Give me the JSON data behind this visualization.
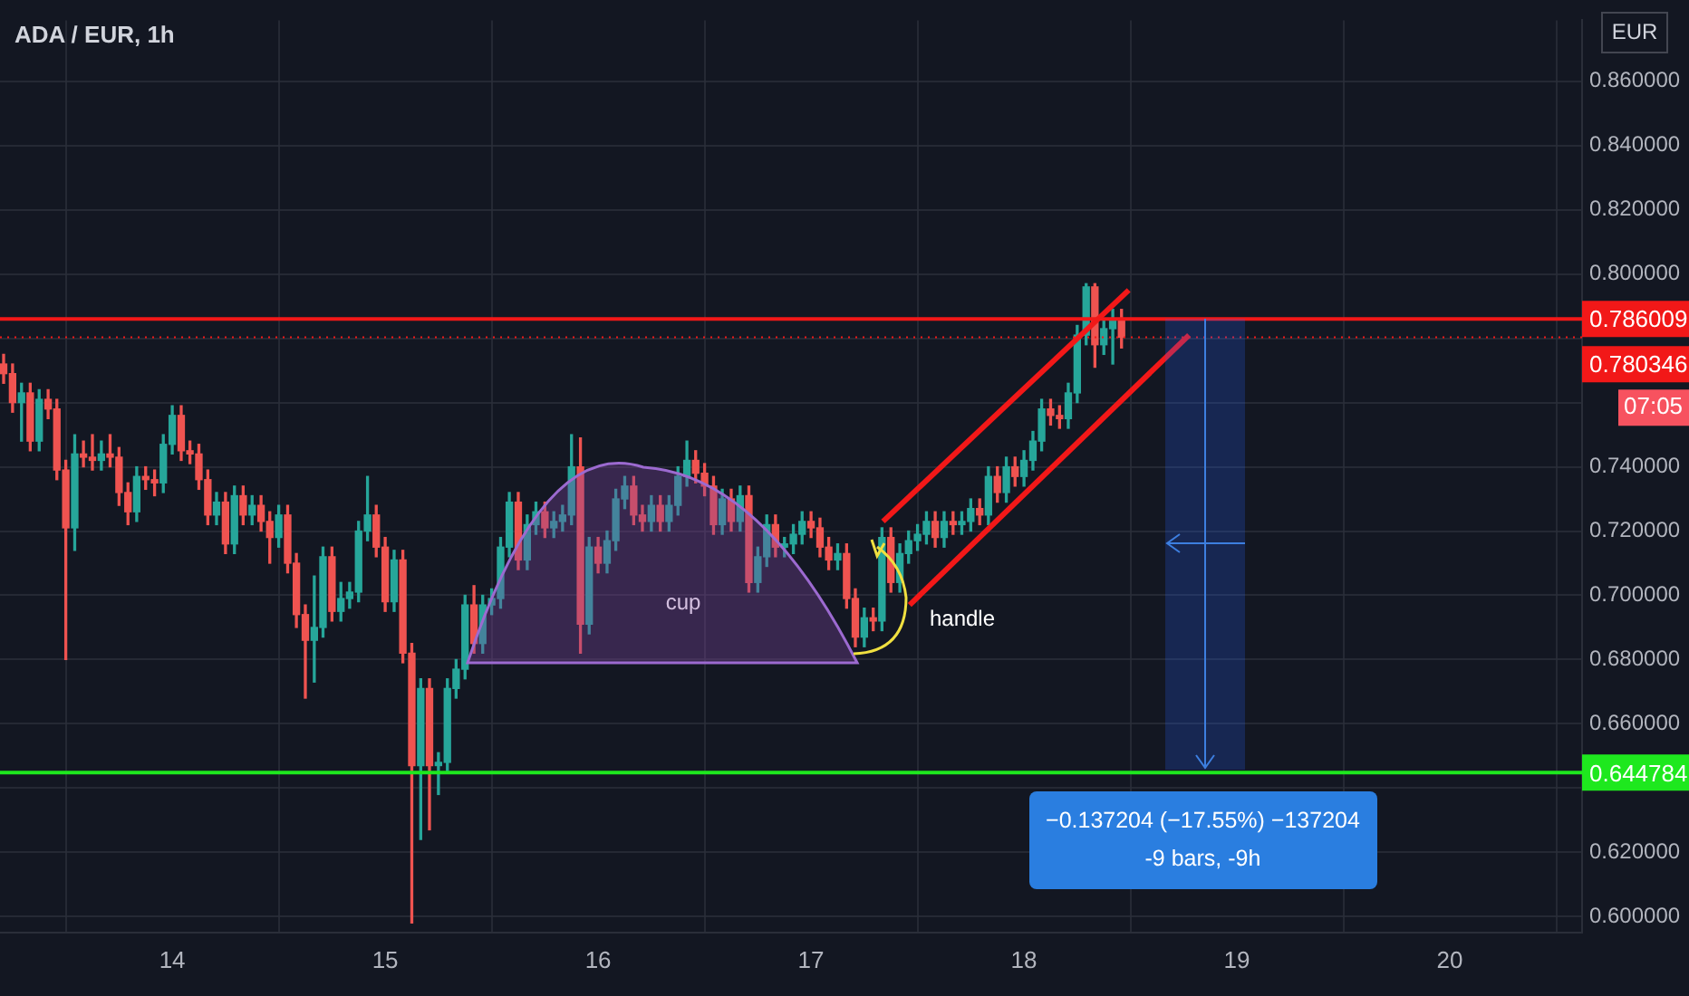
{
  "chart_data": {
    "type": "candlestick",
    "title": "ADA / EUR, 1h",
    "x": [
      13.208,
      13.25,
      13.292,
      13.333,
      13.375,
      13.417,
      13.458,
      13.5,
      13.542,
      13.583,
      13.625,
      13.667,
      13.708,
      13.75,
      13.792,
      13.833,
      13.875,
      13.917,
      13.958,
      14,
      14.042,
      14.083,
      14.125,
      14.167,
      14.208,
      14.25,
      14.292,
      14.333,
      14.375,
      14.417,
      14.458,
      14.5,
      14.542,
      14.583,
      14.625,
      14.667,
      14.708,
      14.75,
      14.792,
      14.833,
      14.875,
      14.917,
      14.958,
      15,
      15.042,
      15.083,
      15.125,
      15.167,
      15.208,
      15.25,
      15.292,
      15.333,
      15.375,
      15.417,
      15.458,
      15.5,
      15.542,
      15.583,
      15.625,
      15.667,
      15.708,
      15.75,
      15.792,
      15.833,
      15.875,
      15.917,
      15.958,
      16,
      16.042,
      16.083,
      16.125,
      16.167,
      16.208,
      16.25,
      16.292,
      16.333,
      16.375,
      16.417,
      16.458,
      16.5,
      16.542,
      16.583,
      16.625,
      16.667,
      16.708,
      16.75,
      16.792,
      16.833,
      16.875,
      16.917,
      16.958,
      17,
      17.042,
      17.083,
      17.125,
      17.167,
      17.208,
      17.25,
      17.292,
      17.333,
      17.375,
      17.417,
      17.458,
      17.5,
      17.542,
      17.583,
      17.625,
      17.667,
      17.708,
      17.75,
      17.792,
      17.833,
      17.875,
      17.917,
      17.958,
      18,
      18.042,
      18.083,
      18.125,
      18.167,
      18.208,
      18.25,
      18.292,
      18.333,
      18.375,
      18.417,
      18.458
    ],
    "ohlc": [
      [
        0.772,
        0.775,
        0.766,
        0.769
      ],
      [
        0.769,
        0.772,
        0.757,
        0.76
      ],
      [
        0.76,
        0.766,
        0.748,
        0.763
      ],
      [
        0.763,
        0.766,
        0.745,
        0.748
      ],
      [
        0.748,
        0.764,
        0.745,
        0.761
      ],
      [
        0.761,
        0.764,
        0.755,
        0.758
      ],
      [
        0.758,
        0.761,
        0.736,
        0.739
      ],
      [
        0.739,
        0.742,
        0.68,
        0.721
      ],
      [
        0.721,
        0.75,
        0.714,
        0.744
      ],
      [
        0.744,
        0.748,
        0.74,
        0.743
      ],
      [
        0.743,
        0.75,
        0.739,
        0.742
      ],
      [
        0.742,
        0.748,
        0.739,
        0.744
      ],
      [
        0.744,
        0.75,
        0.74,
        0.743
      ],
      [
        0.743,
        0.746,
        0.728,
        0.732
      ],
      [
        0.732,
        0.735,
        0.722,
        0.726
      ],
      [
        0.726,
        0.74,
        0.723,
        0.737
      ],
      [
        0.737,
        0.74,
        0.733,
        0.736
      ],
      [
        0.736,
        0.739,
        0.731,
        0.735
      ],
      [
        0.735,
        0.75,
        0.732,
        0.747
      ],
      [
        0.747,
        0.759,
        0.744,
        0.756
      ],
      [
        0.756,
        0.759,
        0.742,
        0.745
      ],
      [
        0.745,
        0.748,
        0.741,
        0.744
      ],
      [
        0.744,
        0.747,
        0.733,
        0.736
      ],
      [
        0.736,
        0.739,
        0.722,
        0.725
      ],
      [
        0.725,
        0.732,
        0.722,
        0.729
      ],
      [
        0.729,
        0.732,
        0.713,
        0.716
      ],
      [
        0.716,
        0.734,
        0.713,
        0.731
      ],
      [
        0.731,
        0.734,
        0.722,
        0.725
      ],
      [
        0.725,
        0.731,
        0.722,
        0.728
      ],
      [
        0.728,
        0.731,
        0.72,
        0.723
      ],
      [
        0.723,
        0.726,
        0.71,
        0.718
      ],
      [
        0.718,
        0.728,
        0.715,
        0.725
      ],
      [
        0.725,
        0.728,
        0.707,
        0.71
      ],
      [
        0.71,
        0.713,
        0.69,
        0.694
      ],
      [
        0.694,
        0.697,
        0.668,
        0.686
      ],
      [
        0.686,
        0.706,
        0.673,
        0.69
      ],
      [
        0.69,
        0.715,
        0.687,
        0.712
      ],
      [
        0.712,
        0.715,
        0.692,
        0.695
      ],
      [
        0.695,
        0.704,
        0.692,
        0.699
      ],
      [
        0.699,
        0.704,
        0.696,
        0.701
      ],
      [
        0.701,
        0.723,
        0.698,
        0.72
      ],
      [
        0.72,
        0.737,
        0.717,
        0.725
      ],
      [
        0.725,
        0.728,
        0.712,
        0.715
      ],
      [
        0.715,
        0.718,
        0.695,
        0.698
      ],
      [
        0.698,
        0.714,
        0.695,
        0.711
      ],
      [
        0.711,
        0.714,
        0.679,
        0.682
      ],
      [
        0.682,
        0.685,
        0.598,
        0.647
      ],
      [
        0.647,
        0.674,
        0.624,
        0.671
      ],
      [
        0.671,
        0.674,
        0.627,
        0.647
      ],
      [
        0.647,
        0.651,
        0.638,
        0.648
      ],
      [
        0.648,
        0.674,
        0.645,
        0.671
      ],
      [
        0.671,
        0.68,
        0.668,
        0.677
      ],
      [
        0.677,
        0.7,
        0.674,
        0.697
      ],
      [
        0.697,
        0.703,
        0.682,
        0.685
      ],
      [
        0.685,
        0.7,
        0.682,
        0.697
      ],
      [
        0.697,
        0.702,
        0.694,
        0.699
      ],
      [
        0.699,
        0.718,
        0.696,
        0.715
      ],
      [
        0.715,
        0.732,
        0.712,
        0.729
      ],
      [
        0.729,
        0.732,
        0.708,
        0.711
      ],
      [
        0.711,
        0.725,
        0.708,
        0.722
      ],
      [
        0.722,
        0.729,
        0.719,
        0.726
      ],
      [
        0.726,
        0.729,
        0.718,
        0.721
      ],
      [
        0.721,
        0.726,
        0.718,
        0.723
      ],
      [
        0.723,
        0.728,
        0.72,
        0.725
      ],
      [
        0.725,
        0.75,
        0.722,
        0.74
      ],
      [
        0.74,
        0.749,
        0.682,
        0.691
      ],
      [
        0.691,
        0.718,
        0.688,
        0.715
      ],
      [
        0.715,
        0.718,
        0.707,
        0.71
      ],
      [
        0.71,
        0.72,
        0.707,
        0.717
      ],
      [
        0.717,
        0.733,
        0.714,
        0.73
      ],
      [
        0.73,
        0.737,
        0.727,
        0.734
      ],
      [
        0.734,
        0.737,
        0.722,
        0.725
      ],
      [
        0.725,
        0.728,
        0.72,
        0.723
      ],
      [
        0.723,
        0.731,
        0.72,
        0.728
      ],
      [
        0.728,
        0.731,
        0.72,
        0.723
      ],
      [
        0.723,
        0.731,
        0.72,
        0.728
      ],
      [
        0.728,
        0.74,
        0.725,
        0.737
      ],
      [
        0.737,
        0.748,
        0.734,
        0.742
      ],
      [
        0.742,
        0.745,
        0.735,
        0.738
      ],
      [
        0.738,
        0.741,
        0.731,
        0.734
      ],
      [
        0.734,
        0.737,
        0.719,
        0.722
      ],
      [
        0.722,
        0.733,
        0.719,
        0.73
      ],
      [
        0.73,
        0.733,
        0.72,
        0.723
      ],
      [
        0.723,
        0.734,
        0.72,
        0.731
      ],
      [
        0.731,
        0.734,
        0.701,
        0.704
      ],
      [
        0.704,
        0.715,
        0.701,
        0.712
      ],
      [
        0.712,
        0.725,
        0.709,
        0.722
      ],
      [
        0.722,
        0.725,
        0.712,
        0.715
      ],
      [
        0.715,
        0.718,
        0.712,
        0.716
      ],
      [
        0.716,
        0.722,
        0.713,
        0.719
      ],
      [
        0.719,
        0.726,
        0.716,
        0.723
      ],
      [
        0.723,
        0.726,
        0.718,
        0.721
      ],
      [
        0.721,
        0.724,
        0.712,
        0.715
      ],
      [
        0.715,
        0.718,
        0.708,
        0.711
      ],
      [
        0.711,
        0.716,
        0.708,
        0.713
      ],
      [
        0.713,
        0.716,
        0.696,
        0.699
      ],
      [
        0.699,
        0.702,
        0.684,
        0.687
      ],
      [
        0.687,
        0.696,
        0.684,
        0.693
      ],
      [
        0.693,
        0.696,
        0.689,
        0.692
      ],
      [
        0.692,
        0.721,
        0.689,
        0.718
      ],
      [
        0.718,
        0.721,
        0.701,
        0.704
      ],
      [
        0.704,
        0.716,
        0.701,
        0.713
      ],
      [
        0.713,
        0.72,
        0.71,
        0.717
      ],
      [
        0.717,
        0.722,
        0.714,
        0.719
      ],
      [
        0.719,
        0.726,
        0.716,
        0.723
      ],
      [
        0.723,
        0.726,
        0.715,
        0.718
      ],
      [
        0.718,
        0.726,
        0.715,
        0.723
      ],
      [
        0.723,
        0.726,
        0.719,
        0.722
      ],
      [
        0.722,
        0.726,
        0.719,
        0.723
      ],
      [
        0.723,
        0.73,
        0.72,
        0.727
      ],
      [
        0.727,
        0.73,
        0.722,
        0.725
      ],
      [
        0.725,
        0.74,
        0.722,
        0.737
      ],
      [
        0.737,
        0.74,
        0.729,
        0.732
      ],
      [
        0.732,
        0.743,
        0.729,
        0.74
      ],
      [
        0.74,
        0.743,
        0.734,
        0.737
      ],
      [
        0.737,
        0.745,
        0.734,
        0.742
      ],
      [
        0.742,
        0.751,
        0.739,
        0.748
      ],
      [
        0.748,
        0.761,
        0.745,
        0.758
      ],
      [
        0.758,
        0.761,
        0.753,
        0.756
      ],
      [
        0.756,
        0.759,
        0.752,
        0.755
      ],
      [
        0.755,
        0.766,
        0.752,
        0.763
      ],
      [
        0.763,
        0.784,
        0.76,
        0.781
      ],
      [
        0.781,
        0.797,
        0.778,
        0.796
      ],
      [
        0.796,
        0.797,
        0.771,
        0.778
      ],
      [
        0.778,
        0.786,
        0.775,
        0.783
      ],
      [
        0.783,
        0.789,
        0.772,
        0.786
      ],
      [
        0.786,
        0.789,
        0.777,
        0.780346
      ]
    ],
    "series": [
      {
        "type": "line",
        "x": [
          17.338,
          18.492
        ],
        "values": [
          0.723,
          0.795
        ],
        "color": "#f21818"
      },
      {
        "type": "line",
        "x": [
          17.463,
          18.775
        ],
        "values": [
          0.697,
          0.781
        ],
        "color": "#f21818"
      }
    ],
    "xlim": [
      13.191,
      20.621
    ],
    "xticks": [
      14,
      15,
      16,
      17,
      18,
      19,
      20
    ],
    "ylim": [
      0.595,
      0.879
    ],
    "yticks": [
      {
        "value": 0.6,
        "label": "0.600000"
      },
      {
        "value": 0.62,
        "label": "0.620000"
      },
      {
        "value": 0.64,
        "label": null
      },
      {
        "value": 0.66,
        "label": "0.660000"
      },
      {
        "value": 0.68,
        "label": "0.680000"
      },
      {
        "value": 0.7,
        "label": "0.700000"
      },
      {
        "value": 0.72,
        "label": "0.720000"
      },
      {
        "value": 0.74,
        "label": "0.740000"
      },
      {
        "value": 0.76,
        "label": null
      },
      {
        "value": 0.78,
        "label": null
      },
      {
        "value": 0.8,
        "label": "0.800000"
      },
      {
        "value": 0.82,
        "label": "0.820000"
      },
      {
        "value": 0.84,
        "label": "0.840000"
      },
      {
        "value": 0.86,
        "label": "0.860000"
      }
    ],
    "ref_lines": [
      {
        "axis": "y",
        "value": 0.786009,
        "label": "0.786009",
        "color": "#f21818"
      },
      {
        "axis": "y",
        "value": 0.644784,
        "label": "0.644784",
        "color": "#1ee81e"
      },
      {
        "axis": "y",
        "value": 0.780346,
        "label": "0.780346",
        "color": "#f21818",
        "line_style": "dotted"
      }
    ],
    "annotations": [
      "cup",
      "handle",
      {
        "text": "−0.137204 (−17.55%) −137204",
        "x": 18.84,
        "y": 0.644784
      },
      "-9 bars, -9h",
      "07:05",
      "EUR"
    ],
    "grid": true
  }
}
